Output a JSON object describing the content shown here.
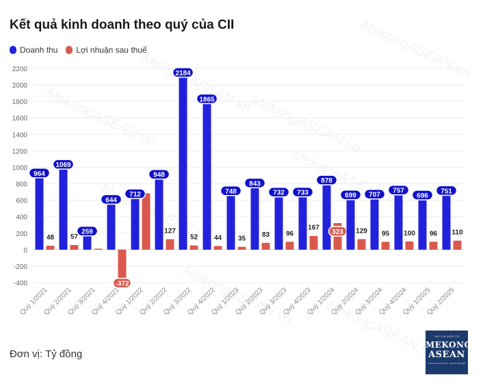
{
  "chart_data": {
    "type": "bar",
    "title": "Kết quả kinh doanh theo quý của CII",
    "categories": [
      "Quý 1/2021",
      "Quý 2/2021",
      "Quý 3/2021",
      "Quý 4/2021",
      "Quý 1/2022",
      "Quý 2/2022",
      "Quý 3/2022",
      "Quý 4/2022",
      "Quý 1/2023",
      "Quý 2/2023",
      "Quý 3/2023",
      "Quý 4/2023",
      "Quý 1/2024",
      "Quý 2/2024",
      "Quý 3/2024",
      "Quý 4/2024",
      "Quý 1/2025",
      "Quý 2/2025"
    ],
    "series": [
      {
        "name": "Doanh thu",
        "color": "#2222dd",
        "values": [
          964,
          1069,
          259,
          644,
          712,
          948,
          2184,
          1865,
          748,
          843,
          732,
          733,
          878,
          699,
          707,
          757,
          696,
          751
        ],
        "labels": [
          "964",
          "1069",
          "259",
          "644",
          "712",
          "948",
          "2184",
          "1865",
          "748",
          "843",
          "732",
          "733",
          "878",
          "699",
          "707",
          "757",
          "696",
          "751"
        ]
      },
      {
        "name": "Lợi nhuận sau thuế",
        "color": "#d9594c",
        "values": [
          48,
          57,
          12,
          -372,
          685,
          127,
          52,
          44,
          35,
          83,
          96,
          167,
          323,
          129,
          95,
          100,
          96,
          110
        ],
        "labels": [
          "48",
          "57",
          "",
          "-372",
          "",
          "127",
          "52",
          "44",
          "35",
          "83",
          "96",
          "167",
          "323",
          "129",
          "95",
          "100",
          "96",
          "110"
        ]
      }
    ],
    "ylim": [
      -400,
      2200
    ],
    "yticks": [
      -400,
      -200,
      0,
      200,
      400,
      600,
      800,
      1000,
      1200,
      1400,
      1600,
      1800,
      2000,
      2200
    ],
    "ytick_labels": [
      "-400",
      "-200",
      "0",
      "200",
      "400",
      "600",
      "800",
      "1000",
      "1200",
      "1400",
      "1600",
      "1800",
      "2000",
      "2200"
    ],
    "grid": true,
    "legend_position": "top-left"
  },
  "unit_label": "Đơn vị: Tỷ đồng",
  "watermark": "MekongASEAN.vn",
  "logo": {
    "top": "TẠP CHÍ ĐIỆN TỬ",
    "line1": "MEKONG",
    "line2": "ASEAN",
    "bottom": "THÔNG TIN KINH TẾ - DOANH NGHIỆP"
  }
}
